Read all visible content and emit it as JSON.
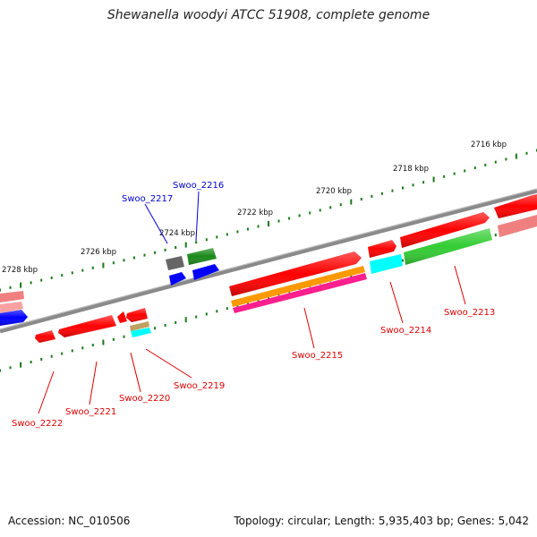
{
  "title": "Shewanella woodyi ATCC 51908, complete genome",
  "accession": "Accession: NC_010506",
  "summary": "Topology: circular; Length: 5,935,403 bp; Genes: 5,042",
  "colors": {
    "red": "#ff0000",
    "blue": "#0000ff",
    "dark_green": "#1a8a1a",
    "light_green": "#33cc33",
    "cyan": "#00ffff",
    "orange": "#ff9900",
    "pink": "#ff1f8f",
    "salmon": "#f08080",
    "gray": "#666666",
    "tick_green": "#1a7a1a",
    "label_blue": "#0000cc",
    "label_red": "#dd0000"
  },
  "ticks": [
    {
      "label": "2716 kbp"
    },
    {
      "label": "2718 kbp"
    },
    {
      "label": "2720 kbp"
    },
    {
      "label": "2722 kbp"
    },
    {
      "label": "2724 kbp"
    },
    {
      "label": "2726 kbp"
    },
    {
      "label": "2728 kbp"
    }
  ],
  "gene_labels": [
    {
      "text": "Swoo_2216",
      "color": "blue"
    },
    {
      "text": "Swoo_2217",
      "color": "blue"
    },
    {
      "text": "Swoo_2213",
      "color": "red"
    },
    {
      "text": "Swoo_2214",
      "color": "red"
    },
    {
      "text": "Swoo_2215",
      "color": "red"
    },
    {
      "text": "Swoo_2219",
      "color": "red"
    },
    {
      "text": "Swoo_2220",
      "color": "red"
    },
    {
      "text": "Swoo_2221",
      "color": "red"
    },
    {
      "text": "Swoo_2222",
      "color": "red"
    }
  ]
}
